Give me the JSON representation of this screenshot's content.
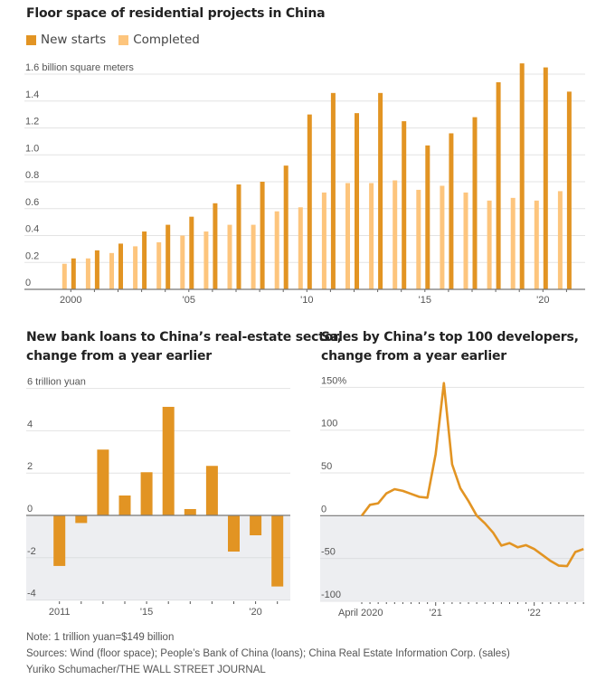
{
  "colors": {
    "new_starts": "#E29423",
    "completed": "#FDC57D",
    "line": "#E29423",
    "negative_shade": "#EDEEF1",
    "grid": "#E3E3E3",
    "axis": "#777777"
  },
  "chart_data": [
    {
      "type": "bar",
      "title": "Floor space of residential projects in China",
      "ylabel": "billion square meters",
      "ytick_top_label": "1.6 billion square meters",
      "ylim": [
        0,
        1.6
      ],
      "yticks": [
        0,
        0.2,
        0.4,
        0.6,
        0.8,
        1.0,
        1.2,
        1.4,
        1.6
      ],
      "ytick_labels": [
        "0",
        "0.2",
        "0.4",
        "0.6",
        "0.8",
        "1.0",
        "1.2",
        "1.4",
        "1.6 billion square meters"
      ],
      "x": [
        2000,
        2001,
        2002,
        2003,
        2004,
        2005,
        2006,
        2007,
        2008,
        2009,
        2010,
        2011,
        2012,
        2013,
        2014,
        2015,
        2016,
        2017,
        2018,
        2019,
        2020,
        2021
      ],
      "xlim": [
        1998,
        2022
      ],
      "xticks": [
        2000,
        2005,
        2010,
        2015,
        2020
      ],
      "xtick_labels": [
        "2000",
        "'05",
        "'10",
        "'15",
        "'20"
      ],
      "legend": "top-left",
      "grid": true,
      "series": [
        {
          "name": "New starts",
          "values": [
            0.23,
            0.29,
            0.34,
            0.43,
            0.48,
            0.54,
            0.64,
            0.78,
            0.8,
            0.92,
            1.3,
            1.46,
            1.31,
            1.46,
            1.25,
            1.07,
            1.16,
            1.28,
            1.54,
            1.68,
            1.65,
            1.47
          ]
        },
        {
          "name": "Completed",
          "values": [
            0.19,
            0.23,
            0.27,
            0.32,
            0.35,
            0.4,
            0.43,
            0.48,
            0.48,
            0.58,
            0.61,
            0.72,
            0.79,
            0.79,
            0.81,
            0.74,
            0.77,
            0.72,
            0.66,
            0.68,
            0.66,
            0.73
          ]
        }
      ]
    },
    {
      "type": "bar",
      "title": "New bank loans to China’s real-estate sector, change from a year earlier",
      "title_lines": [
        "New bank loans to China’s real-estate sector,",
        "change from a year earlier"
      ],
      "ylabel": "trillion yuan",
      "ylim": [
        -4.5,
        6
      ],
      "yticks": [
        -4,
        -2,
        0,
        2,
        4,
        6
      ],
      "ytick_labels": [
        "-4",
        "-2",
        "0",
        "2",
        "4",
        "6 trillion yuan"
      ],
      "x": [
        2011,
        2012,
        2013,
        2014,
        2015,
        2016,
        2017,
        2018,
        2019,
        2020,
        2021
      ],
      "xticks": [
        2011,
        2015,
        2020
      ],
      "xtick_labels": [
        "2011",
        "'15",
        "'20"
      ],
      "grid": true,
      "values": [
        -2.39,
        -0.36,
        3.11,
        0.94,
        2.04,
        5.13,
        0.3,
        2.34,
        -1.71,
        -0.94,
        -3.36
      ]
    },
    {
      "type": "line",
      "title": "Sales by China’s top 100 developers, change from a year earlier",
      "title_lines": [
        "Sales by China’s top 100 developers,",
        "change from a year earlier"
      ],
      "ylabel": "%",
      "ylim": [
        -105,
        150
      ],
      "yticks": [
        -100,
        -50,
        0,
        50,
        100,
        150
      ],
      "ytick_labels": [
        "-100",
        "-50",
        "0",
        "50",
        "100",
        "150%"
      ],
      "x": [
        "2020-04",
        "2020-05",
        "2020-06",
        "2020-07",
        "2020-08",
        "2020-09",
        "2020-10",
        "2020-11",
        "2020-12",
        "2021-01",
        "2021-02",
        "2021-03",
        "2021-04",
        "2021-05",
        "2021-06",
        "2021-07",
        "2021-08",
        "2021-09",
        "2021-10",
        "2021-11",
        "2021-12",
        "2022-01",
        "2022-02",
        "2022-03",
        "2022-04",
        "2022-05",
        "2022-06",
        "2022-07"
      ],
      "xtick_labels": [
        "April 2020",
        "'21",
        "'22"
      ],
      "grid": true,
      "series": [
        {
          "name": "Sales change",
          "values": [
            0,
            12.7,
            14.5,
            26,
            31,
            29,
            25.5,
            22,
            21,
            72,
            155,
            60,
            32,
            17,
            0,
            -9,
            -20,
            -35,
            -32,
            -37,
            -34.5,
            -39,
            -46,
            -53,
            -58.5,
            -59,
            -42.5,
            -39
          ]
        }
      ]
    }
  ],
  "notes": {
    "note": "Note: 1 trillion yuan=$149 billion",
    "sources": "Sources: Wind (floor space); People’s Bank of China (loans); China Real Estate Information Corp. (sales)",
    "credit": "Yuriko Schumacher/THE WALL STREET JOURNAL"
  }
}
